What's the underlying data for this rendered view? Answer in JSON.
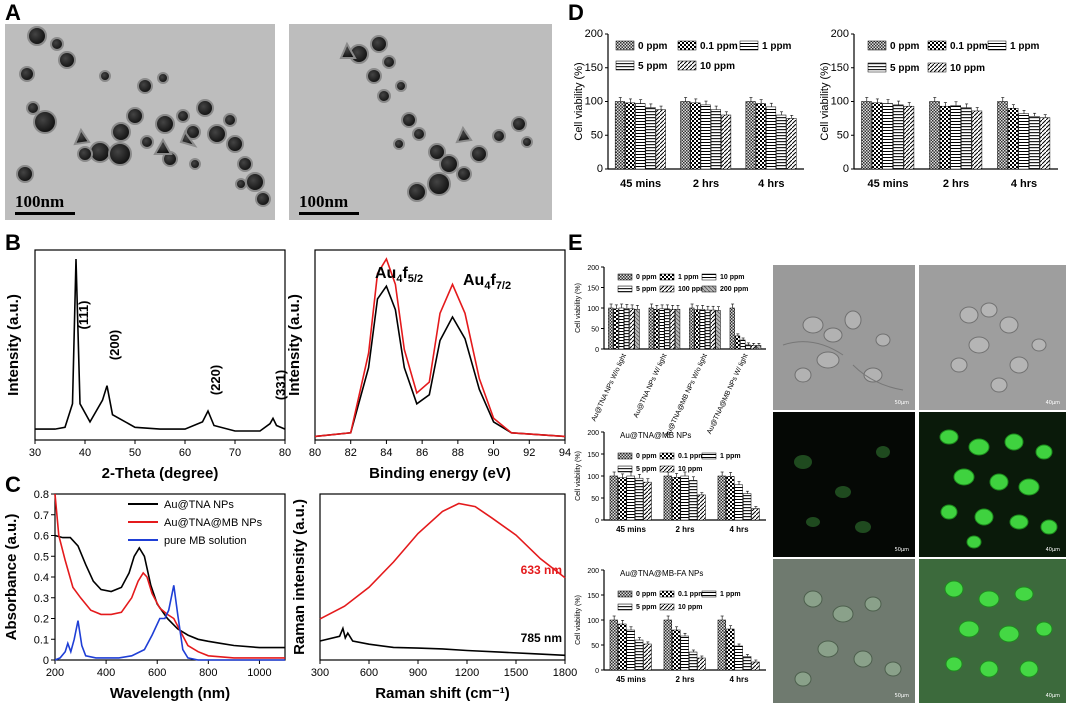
{
  "panel_labels": {
    "A": "A",
    "B": "B",
    "C": "C",
    "D": "D",
    "E": "E"
  },
  "tem": {
    "scale_left": "100nm",
    "scale_right": "100nm"
  },
  "micro_scales": [
    "50μm",
    "40μm",
    "50μm",
    "40μm",
    "50μm",
    "40μm"
  ],
  "colors": {
    "black": "#000000",
    "red": "#e41a1c",
    "blue": "#1f3fd6",
    "green": "#2fbf2f"
  },
  "chart_data": [
    {
      "id": "xrd",
      "type": "line",
      "xlabel": "2-Theta (degree)",
      "ylabel": "Intensity (a.u.)",
      "xlim": [
        30,
        80
      ],
      "xticks": [
        30,
        40,
        50,
        60,
        70,
        80
      ],
      "peaks": [
        {
          "x": 38.2,
          "label": "(111)"
        },
        {
          "x": 44.4,
          "label": "(200)"
        },
        {
          "x": 64.6,
          "label": "(220)"
        },
        {
          "x": 77.6,
          "label": "(331)"
        }
      ],
      "series": [
        {
          "x": [
            30,
            34,
            36,
            37.5,
            38.2,
            39,
            41,
            43.5,
            44.4,
            45.5,
            50,
            55,
            60,
            63.5,
            64.6,
            65.8,
            70,
            75,
            77,
            77.6,
            78.3,
            80
          ],
          "y": [
            0.06,
            0.06,
            0.07,
            0.2,
            1.0,
            0.2,
            0.1,
            0.22,
            0.3,
            0.14,
            0.07,
            0.06,
            0.06,
            0.1,
            0.16,
            0.08,
            0.05,
            0.05,
            0.09,
            0.12,
            0.08,
            0.06
          ]
        }
      ]
    },
    {
      "id": "xps",
      "type": "line",
      "xlabel": "Binding energy (eV)",
      "ylabel": "Intensity (a.u.)",
      "xlim": [
        80,
        94
      ],
      "xticks": [
        80,
        82,
        84,
        86,
        88,
        90,
        92,
        94
      ],
      "annotations": [
        {
          "main": "Au",
          "sub": "4",
          "rest": "f",
          "rsub": "5/2"
        },
        {
          "main": "Au",
          "sub": "4",
          "rest": "f",
          "rsub": "7/2"
        }
      ],
      "series": [
        {
          "x": [
            80,
            82,
            83,
            83.5,
            84,
            84.5,
            85,
            85.7,
            86.4,
            87,
            87.7,
            88.4,
            89.2,
            90,
            91,
            94
          ],
          "y": [
            0.02,
            0.04,
            0.4,
            0.78,
            0.85,
            0.72,
            0.4,
            0.2,
            0.25,
            0.55,
            0.68,
            0.56,
            0.28,
            0.1,
            0.04,
            0.02
          ]
        },
        {
          "x": [
            80,
            82,
            83,
            83.5,
            84,
            84.5,
            85,
            85.7,
            86.4,
            87,
            87.7,
            88.4,
            89.2,
            90,
            91,
            94
          ],
          "y": [
            0.02,
            0.04,
            0.48,
            0.92,
            1.0,
            0.86,
            0.5,
            0.26,
            0.32,
            0.7,
            0.86,
            0.7,
            0.34,
            0.12,
            0.04,
            0.02
          ]
        }
      ]
    },
    {
      "id": "uvvis",
      "type": "line",
      "xlabel": "Wavelength (nm)",
      "ylabel": "Absorbance (a.u.)",
      "xlim": [
        200,
        1100
      ],
      "ylim": [
        0,
        0.8
      ],
      "xticks": [
        200,
        400,
        600,
        800,
        1000
      ],
      "yticks": [
        0,
        0.1,
        0.2,
        0.3,
        0.4,
        0.5,
        0.6,
        0.7,
        0.8
      ],
      "series": [
        {
          "name": "Au@TNA NPs",
          "x": [
            200,
            230,
            260,
            290,
            320,
            350,
            380,
            420,
            460,
            490,
            510,
            530,
            550,
            575,
            600,
            640,
            680,
            720,
            760,
            800,
            850,
            900,
            1000,
            1100
          ],
          "y": [
            0.6,
            0.59,
            0.59,
            0.55,
            0.46,
            0.38,
            0.34,
            0.33,
            0.35,
            0.42,
            0.5,
            0.54,
            0.5,
            0.36,
            0.27,
            0.2,
            0.15,
            0.12,
            0.1,
            0.09,
            0.08,
            0.07,
            0.06,
            0.06
          ]
        },
        {
          "name": "Au@TNA@MB NPs",
          "x": [
            200,
            215,
            240,
            270,
            300,
            340,
            380,
            420,
            460,
            500,
            525,
            545,
            560,
            580,
            610,
            640,
            665,
            690,
            720,
            760,
            800,
            900,
            1000,
            1100
          ],
          "y": [
            0.8,
            0.6,
            0.48,
            0.35,
            0.3,
            0.24,
            0.22,
            0.22,
            0.23,
            0.3,
            0.38,
            0.42,
            0.4,
            0.32,
            0.25,
            0.22,
            0.2,
            0.14,
            0.07,
            0.04,
            0.02,
            0.01,
            0.01,
            0.01
          ]
        },
        {
          "name": "pure MB solution",
          "x": [
            200,
            220,
            240,
            250,
            262,
            275,
            290,
            305,
            320,
            360,
            400,
            450,
            500,
            550,
            580,
            610,
            630,
            645,
            665,
            680,
            700,
            720,
            760,
            1100
          ],
          "y": [
            0.0,
            0.01,
            0.04,
            0.08,
            0.04,
            0.1,
            0.19,
            0.07,
            0.02,
            0.01,
            0.01,
            0.01,
            0.02,
            0.05,
            0.12,
            0.2,
            0.2,
            0.24,
            0.36,
            0.22,
            0.05,
            0.01,
            0.0,
            0.0
          ]
        }
      ]
    },
    {
      "id": "raman",
      "type": "line",
      "xlabel": "Raman shift (cm⁻¹)",
      "ylabel": "Raman intensity (a.u.)",
      "xlim": [
        300,
        1800
      ],
      "xticks": [
        300,
        600,
        900,
        1200,
        1500,
        1800
      ],
      "series": [
        {
          "name": "633 nm",
          "x": [
            300,
            450,
            600,
            750,
            900,
            1050,
            1150,
            1250,
            1350,
            1500,
            1650,
            1800
          ],
          "y": [
            0.26,
            0.34,
            0.46,
            0.62,
            0.8,
            0.94,
            0.99,
            0.97,
            0.9,
            0.79,
            0.64,
            0.52
          ]
        },
        {
          "name": "785 nm",
          "x": [
            300,
            420,
            440,
            455,
            470,
            500,
            600,
            750,
            900,
            1050,
            1200,
            1400,
            1600,
            1800
          ],
          "y": [
            0.12,
            0.15,
            0.2,
            0.14,
            0.17,
            0.12,
            0.1,
            0.08,
            0.075,
            0.07,
            0.06,
            0.05,
            0.04,
            0.03
          ]
        }
      ]
    },
    {
      "id": "d_left",
      "type": "bar",
      "ylabel": "Cell viability (%)",
      "ylim": [
        0,
        200
      ],
      "yticks": [
        0,
        50,
        100,
        150,
        200
      ],
      "categories": [
        "45 mins",
        "2 hrs",
        "4 hrs"
      ],
      "series": [
        {
          "name": "0 ppm",
          "values": [
            100,
            100,
            100
          ]
        },
        {
          "name": "0.1 ppm",
          "values": [
            98,
            98,
            97
          ]
        },
        {
          "name": "1 ppm",
          "values": [
            97,
            95,
            92
          ]
        },
        {
          "name": "5 ppm",
          "values": [
            91,
            88,
            80
          ]
        },
        {
          "name": "10 ppm",
          "values": [
            88,
            80,
            75
          ]
        }
      ]
    },
    {
      "id": "d_right",
      "type": "bar",
      "ylabel": "Cell viability (%)",
      "ylim": [
        0,
        200
      ],
      "yticks": [
        0,
        50,
        100,
        150,
        200
      ],
      "categories": [
        "45 mins",
        "2 hrs",
        "4 hrs"
      ],
      "series": [
        {
          "name": "0 ppm",
          "values": [
            100,
            100,
            100
          ]
        },
        {
          "name": "0.1 ppm",
          "values": [
            98,
            93,
            90
          ]
        },
        {
          "name": "1 ppm",
          "values": [
            97,
            94,
            82
          ]
        },
        {
          "name": "5 ppm",
          "values": [
            95,
            91,
            78
          ]
        },
        {
          "name": "10 ppm",
          "values": [
            93,
            86,
            76
          ]
        }
      ]
    },
    {
      "id": "e_top",
      "type": "bar",
      "ylabel": "Cell viability (%)",
      "ylim": [
        0,
        200
      ],
      "yticks": [
        0,
        50,
        100,
        150,
        200
      ],
      "categories": [
        "Au@TNA NPs W/o light",
        "Au@TNA NPs W/ light",
        "Au@TNA@MB NPs W/o light",
        "Au@TNA@MB NPs W/ light"
      ],
      "series": [
        {
          "name": "0 ppm",
          "values": [
            100,
            100,
            100,
            100
          ]
        },
        {
          "name": "1 ppm",
          "values": [
            98,
            97,
            96,
            32
          ]
        },
        {
          "name": "10 ppm",
          "values": [
            100,
            98,
            97,
            22
          ]
        },
        {
          "name": "5 ppm",
          "values": [
            99,
            98,
            95,
            10
          ]
        },
        {
          "name": "100 ppm",
          "values": [
            98,
            97,
            95,
            9
          ]
        },
        {
          "name": "200 ppm",
          "values": [
            97,
            97,
            94,
            9
          ]
        }
      ]
    },
    {
      "id": "e_mid",
      "type": "bar",
      "title": "Au@TNA@MB NPs",
      "ylabel": "Cell viability (%)",
      "ylim": [
        0,
        200
      ],
      "yticks": [
        0,
        50,
        100,
        150,
        200
      ],
      "categories": [
        "45 mins",
        "2 hrs",
        "4 hrs"
      ],
      "series": [
        {
          "name": "0 ppm",
          "values": [
            100,
            100,
            100
          ]
        },
        {
          "name": "0.1 ppm",
          "values": [
            96,
            97,
            99
          ]
        },
        {
          "name": "1 ppm",
          "values": [
            100,
            100,
            80
          ]
        },
        {
          "name": "5 ppm",
          "values": [
            95,
            90,
            60
          ]
        },
        {
          "name": "10 ppm",
          "values": [
            86,
            57,
            26
          ]
        }
      ]
    },
    {
      "id": "e_bot",
      "type": "bar",
      "title": "Au@TNA@MB-FA NPs",
      "ylabel": "Cell viability (%)",
      "ylim": [
        0,
        200
      ],
      "yticks": [
        0,
        50,
        100,
        150,
        200
      ],
      "categories": [
        "45 mins",
        "2 hrs",
        "4 hrs"
      ],
      "series": [
        {
          "name": "0 ppm",
          "values": [
            100,
            100,
            100
          ]
        },
        {
          "name": "0.1 ppm",
          "values": [
            92,
            80,
            82
          ]
        },
        {
          "name": "1 ppm",
          "values": [
            80,
            68,
            48
          ]
        },
        {
          "name": "5 ppm",
          "values": [
            60,
            36,
            27
          ]
        },
        {
          "name": "10 ppm",
          "values": [
            52,
            24,
            16
          ]
        }
      ]
    }
  ]
}
